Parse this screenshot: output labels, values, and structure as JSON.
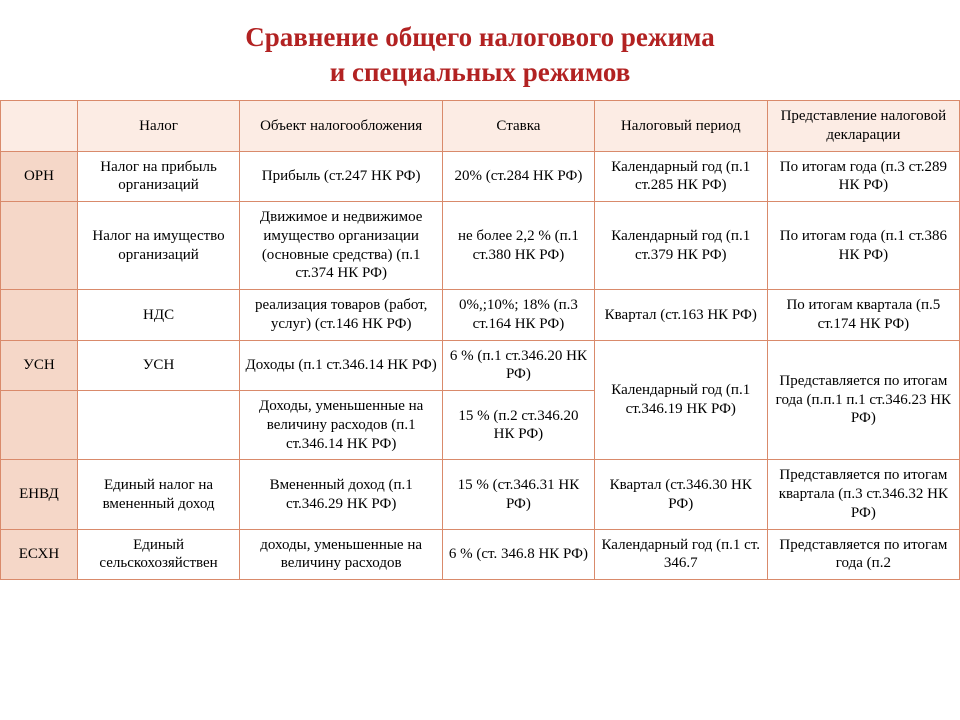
{
  "title_line1": "Сравнение общего налогового режима",
  "title_line2": "и специальных режимов",
  "colors": {
    "title": "#b22222",
    "border": "#d98a6b",
    "header_bg": "#fcece4",
    "label_bg": "#f5d7c8",
    "cell_bg": "#ffffff",
    "text": "#000000"
  },
  "table": {
    "columns": [
      "",
      "Налог",
      "Объект налогообложения",
      "Ставка",
      "Налоговый период",
      "Представление налоговой декларации"
    ],
    "rows": [
      {
        "label": "ОРН",
        "c1": "Налог на прибыль организаций",
        "c2": "Прибыль (ст.247 НК РФ)",
        "c3": "20% (ст.284 НК РФ)",
        "c4": "Календарный год (п.1 ст.285 НК РФ)",
        "c5": "По итогам года (п.3 ст.289 НК РФ)"
      },
      {
        "label": "",
        "c1": "Налог на имущество организаций",
        "c2": "Движимое и недвижимое имущество организации (основные средства) (п.1 ст.374 НК РФ)",
        "c3": "не более 2,2 % (п.1 ст.380 НК РФ)",
        "c4": "Календарный год (п.1 ст.379 НК РФ)",
        "c5": "По итогам года (п.1 ст.386 НК РФ)"
      },
      {
        "label": "",
        "c1": "НДС",
        "c2": "реализация товаров (работ, услуг) (ст.146 НК РФ)",
        "c3": "0%,;10%; 18% (п.3 ст.164 НК РФ)",
        "c4": "Квартал (ст.163 НК РФ)",
        "c5": "По итогам квартала (п.5 ст.174 НК РФ)"
      },
      {
        "label": "УСН",
        "c1": "УСН",
        "c2": "Доходы (п.1 ст.346.14 НК РФ)",
        "c3": "6 % (п.1 ст.346.20 НК РФ)",
        "c4": "Календарный год (п.1 ст.346.19 НК РФ)",
        "c5": "Представляется по итогам года (п.п.1 п.1 ст.346.23 НК РФ)"
      },
      {
        "label": "",
        "c1": "",
        "c2": "Доходы, уменьшенные на величину расходов (п.1 ст.346.14 НК РФ)",
        "c3": "15 % (п.2 ст.346.20 НК РФ)"
      },
      {
        "label": "ЕНВД",
        "c1": "Единый налог на вмененный доход",
        "c2": "Вмененный доход (п.1 ст.346.29 НК РФ)",
        "c3": "15 % (ст.346.31 НК РФ)",
        "c4": "Квартал (ст.346.30 НК РФ)",
        "c5": "Представляется по итогам квартала (п.3 ст.346.32 НК РФ)"
      },
      {
        "label": "ЕСХН",
        "c1": "Единый сельскохозяйствен",
        "c2": "доходы, уменьшенные на величину расходов",
        "c3": "6 % (ст. 346.8 НК РФ)",
        "c4": "Календарный год (п.1 ст. 346.7",
        "c5": "Представляется по итогам года (п.2"
      }
    ]
  }
}
